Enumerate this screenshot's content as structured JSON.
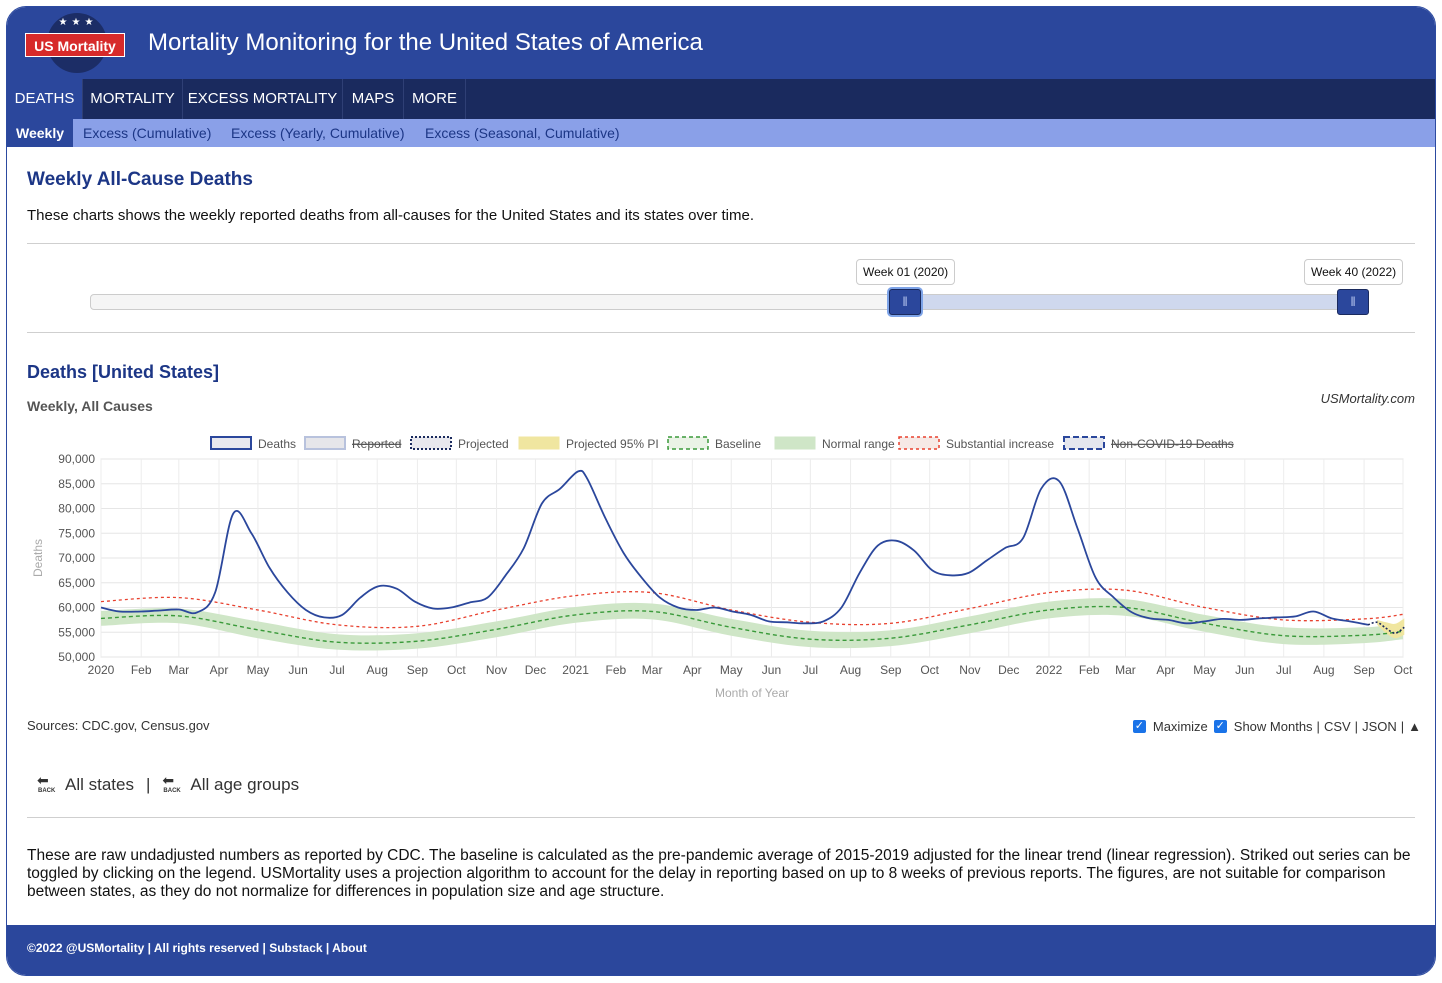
{
  "site": {
    "logo_text": "US Mortality",
    "title": "Mortality Monitoring for the United States of America"
  },
  "nav": {
    "main": [
      "DEATHS",
      "MORTALITY",
      "EXCESS MORTALITY",
      "MAPS",
      "MORE"
    ],
    "sub": [
      "Weekly",
      "Excess (Cumulative)",
      "Excess (Yearly, Cumulative)",
      "Excess (Seasonal, Cumulative)"
    ]
  },
  "page": {
    "heading": "Weekly All-Cause Deaths",
    "intro": "These charts shows the weekly reported deaths from all-causes for the United States and its states over time."
  },
  "range_slider": {
    "start_label": "Week 01 (2020)",
    "end_label": "Week 40 (2022)",
    "start_fraction": 0.638,
    "end_fraction": 1.0
  },
  "chart_section": {
    "heading": "Deaths [United States]",
    "subheading": "Weekly, All Causes",
    "credit": "USMortality.com"
  },
  "colors": {
    "deaths": "#2b479c",
    "baseline": "#3a9a3a",
    "normal_range": "#cfe6c7",
    "substantial_increase": "#e8412f",
    "projected_pi": "#f0e6a0",
    "header_bg": "#2b479c",
    "nav_bg": "#1a2a5e",
    "subnav_bg": "#8aa0e8"
  },
  "chart_data": {
    "type": "line",
    "xlabel": "Month of Year",
    "ylabel": "Deaths",
    "ylim": [
      50000,
      90000
    ],
    "y_ticks": [
      "50,000",
      "55,000",
      "60,000",
      "65,000",
      "70,000",
      "75,000",
      "80,000",
      "85,000",
      "90,000"
    ],
    "x_tick_labels": [
      "2020",
      "Feb",
      "Mar",
      "Apr",
      "May",
      "Jun",
      "Jul",
      "Aug",
      "Sep",
      "Oct",
      "Nov",
      "Dec",
      "2021",
      "Feb",
      "Mar",
      "Apr",
      "May",
      "Jun",
      "Jul",
      "Aug",
      "Sep",
      "Oct",
      "Nov",
      "Dec",
      "2022",
      "Feb",
      "Mar",
      "Apr",
      "May",
      "Jun",
      "Jul",
      "Aug",
      "Sep",
      "Oct"
    ],
    "x_tick_dates": [
      "2020-01-01",
      "2020-02-01",
      "2020-03-01",
      "2020-04-01",
      "2020-05-01",
      "2020-06-01",
      "2020-07-01",
      "2020-08-01",
      "2020-09-01",
      "2020-10-01",
      "2020-11-01",
      "2020-12-01",
      "2021-01-01",
      "2021-02-01",
      "2021-03-01",
      "2021-04-01",
      "2021-05-01",
      "2021-06-01",
      "2021-07-01",
      "2021-08-01",
      "2021-09-01",
      "2021-10-01",
      "2021-11-01",
      "2021-12-01",
      "2022-01-01",
      "2022-02-01",
      "2022-03-01",
      "2022-04-01",
      "2022-05-01",
      "2022-06-01",
      "2022-07-01",
      "2022-08-01",
      "2022-09-01",
      "2022-10-01"
    ],
    "grid": true,
    "legend": [
      {
        "name": "Deaths",
        "struck": false
      },
      {
        "name": "Reported",
        "struck": true
      },
      {
        "name": "Projected",
        "struck": false
      },
      {
        "name": "Projected 95% PI",
        "struck": false
      },
      {
        "name": "Baseline",
        "struck": false
      },
      {
        "name": "Normal range",
        "struck": false
      },
      {
        "name": "Substantial increase",
        "struck": false
      },
      {
        "name": "Non-COVID-19 Deaths",
        "struck": true
      }
    ],
    "legend_position": "top",
    "series": [
      {
        "name": "Deaths",
        "x": [
          "2020-01-01",
          "2020-01-15",
          "2020-02-01",
          "2020-02-15",
          "2020-03-01",
          "2020-03-15",
          "2020-03-29",
          "2020-04-12",
          "2020-04-26",
          "2020-05-10",
          "2020-05-24",
          "2020-06-07",
          "2020-06-21",
          "2020-07-05",
          "2020-07-19",
          "2020-08-02",
          "2020-08-16",
          "2020-08-30",
          "2020-09-13",
          "2020-09-27",
          "2020-10-11",
          "2020-10-25",
          "2020-11-08",
          "2020-11-22",
          "2020-12-06",
          "2020-12-20",
          "2021-01-03",
          "2021-01-10",
          "2021-01-24",
          "2021-02-07",
          "2021-02-21",
          "2021-03-07",
          "2021-03-21",
          "2021-04-04",
          "2021-04-18",
          "2021-05-02",
          "2021-05-16",
          "2021-05-30",
          "2021-06-13",
          "2021-06-27",
          "2021-07-11",
          "2021-07-25",
          "2021-08-08",
          "2021-08-22",
          "2021-09-05",
          "2021-09-19",
          "2021-10-03",
          "2021-10-17",
          "2021-10-31",
          "2021-11-14",
          "2021-11-28",
          "2021-12-12",
          "2021-12-26",
          "2022-01-09",
          "2022-01-23",
          "2022-02-06",
          "2022-02-20",
          "2022-03-06",
          "2022-03-20",
          "2022-04-03",
          "2022-04-17",
          "2022-05-01",
          "2022-05-15",
          "2022-05-29",
          "2022-06-12",
          "2022-06-26",
          "2022-07-10",
          "2022-07-24",
          "2022-08-07",
          "2022-08-21",
          "2022-09-04"
        ],
        "y": [
          60000,
          59200,
          59200,
          59400,
          59600,
          59000,
          63000,
          79000,
          75000,
          68000,
          63000,
          59500,
          58000,
          58500,
          62000,
          64300,
          63800,
          61200,
          59800,
          60000,
          61000,
          62000,
          66500,
          72000,
          81000,
          84000,
          87500,
          86000,
          78000,
          71000,
          66000,
          62000,
          60000,
          59500,
          60000,
          59200,
          58500,
          57200,
          57000,
          56800,
          57200,
          60000,
          67000,
          72500,
          73500,
          71500,
          67500,
          66500,
          67000,
          69500,
          72000,
          74000,
          84000,
          85500,
          76000,
          66000,
          62000,
          59000,
          57800,
          57500,
          56800,
          57200,
          57700,
          57500,
          57800,
          58000,
          58200,
          59200,
          57800,
          57200,
          56500
        ]
      },
      {
        "name": "Projected",
        "x": [
          "2022-09-04",
          "2022-09-11",
          "2022-09-18",
          "2022-09-25",
          "2022-10-02"
        ],
        "y": [
          56500,
          57000,
          55800,
          54800,
          56000
        ]
      },
      {
        "name": "Baseline",
        "x": [
          "2020-01-01",
          "2020-03-01",
          "2020-05-01",
          "2020-07-01",
          "2020-09-01",
          "2020-11-01",
          "2021-01-01",
          "2021-03-01",
          "2021-05-01",
          "2021-07-01",
          "2021-09-01",
          "2021-11-01",
          "2022-01-01",
          "2022-03-01",
          "2022-05-01",
          "2022-07-01",
          "2022-09-01",
          "2022-10-01"
        ],
        "y": [
          57800,
          58300,
          55500,
          53000,
          53200,
          55600,
          58500,
          59200,
          56000,
          53600,
          53800,
          56500,
          59500,
          60000,
          56800,
          54300,
          54400,
          55200
        ]
      },
      {
        "name": "Substantial increase",
        "x": [
          "2020-01-01",
          "2020-03-01",
          "2020-05-01",
          "2020-07-01",
          "2020-09-01",
          "2020-11-01",
          "2021-01-01",
          "2021-03-01",
          "2021-05-01",
          "2021-07-01",
          "2021-09-01",
          "2021-11-01",
          "2022-01-01",
          "2022-03-01",
          "2022-05-01",
          "2022-07-01",
          "2022-09-01",
          "2022-10-01"
        ],
        "y": [
          61200,
          62000,
          59500,
          56500,
          56200,
          59500,
          62400,
          63000,
          59500,
          57000,
          56800,
          59800,
          63000,
          63500,
          60000,
          57500,
          57700,
          58600
        ]
      },
      {
        "name": "Normal range",
        "x": [
          "2020-01-01",
          "2020-03-01",
          "2020-05-01",
          "2020-07-01",
          "2020-09-01",
          "2020-11-01",
          "2021-01-01",
          "2021-03-01",
          "2021-05-01",
          "2021-07-01",
          "2021-09-01",
          "2021-11-01",
          "2022-01-01",
          "2022-03-01",
          "2022-05-01",
          "2022-07-01",
          "2022-09-01",
          "2022-10-01"
        ],
        "upper": [
          59300,
          59800,
          57200,
          54600,
          54800,
          57200,
          60100,
          60800,
          57700,
          55300,
          55400,
          58200,
          61200,
          61700,
          58500,
          56000,
          56000,
          56800
        ],
        "lower": [
          56300,
          56800,
          53800,
          51500,
          51700,
          54000,
          56900,
          57600,
          54300,
          52000,
          52200,
          54800,
          57800,
          58300,
          55100,
          52600,
          52800,
          53600
        ]
      },
      {
        "name": "Projected 95% PI",
        "x": [
          "2022-09-11",
          "2022-09-18",
          "2022-09-25",
          "2022-10-02"
        ],
        "upper": [
          57500,
          57000,
          56700,
          57800
        ],
        "lower": [
          56500,
          54800,
          53800,
          54500
        ]
      }
    ]
  },
  "sources": "Sources: CDC.gov, Census.gov",
  "options": {
    "maximize": "Maximize",
    "show_months": "Show Months",
    "csv": "CSV",
    "json": "JSON",
    "sep": "|",
    "up": "▲"
  },
  "back_links": {
    "icon_label": "BACK",
    "all_states": "All states",
    "all_ages": "All age groups",
    "sep": "|"
  },
  "note": "These are raw undadjusted numbers as reported by CDC. The baseline is calculated as the pre-pandemic average of 2015-2019 adjusted for the linear trend (linear regression). Striked out series can be toggled by clicking on the legend. USMortality uses a projection algorithm to account for the delay in reporting based on up to 8 weeks of previous reports. The figures, are not suitable for comparison between states, as they do not normalize for differences in population size and age structure.",
  "footer": "©2022 @USMortality | All rights reserved | Substack | About"
}
